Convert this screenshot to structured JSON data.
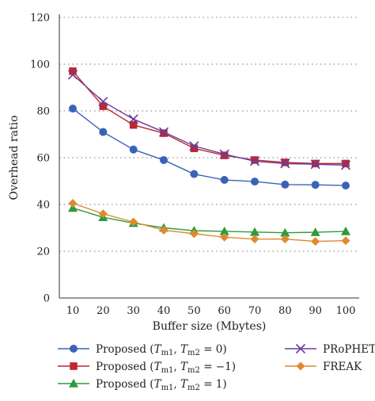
{
  "chart_data": {
    "type": "line",
    "xlabel": "Buffer size (Mbytes)",
    "ylabel": "Overhead ratio",
    "xlim": [
      10,
      100
    ],
    "ylim": [
      0,
      120
    ],
    "x": [
      10,
      20,
      30,
      40,
      50,
      60,
      70,
      80,
      90,
      100
    ],
    "xticks": [
      "10",
      "20",
      "30",
      "40",
      "50",
      "60",
      "70",
      "80",
      "90",
      "100"
    ],
    "yticks": [
      0,
      20,
      40,
      60,
      80,
      100,
      120
    ],
    "grid": "horizontal dotted",
    "legend_position": "bottom",
    "series": [
      {
        "name": "Proposed (Tm1, Tm2 = 0)",
        "label_parts": {
          "prefix": "Proposed (",
          "t1": "T",
          "t1sub": "m1",
          "sep": ", ",
          "t2": "T",
          "t2sub": "m2",
          "suffix": " = 0)"
        },
        "color": "#3a63b8",
        "marker": "circle",
        "values": [
          81,
          71,
          63.5,
          59,
          53,
          50.5,
          49.8,
          48.5,
          48.4,
          48.1
        ]
      },
      {
        "name": "Proposed (Tm1, Tm2 = −1)",
        "label_parts": {
          "prefix": "Proposed (",
          "t1": "T",
          "t1sub": "m1",
          "sep": ", ",
          "t2": "T",
          "t2sub": "m2",
          "suffix": " = −1)"
        },
        "color": "#c0262d",
        "marker": "square",
        "values": [
          97,
          82,
          74,
          70.5,
          64,
          61,
          59,
          58,
          57.5,
          57.5
        ]
      },
      {
        "name": "Proposed (Tm1, Tm2 = 1)",
        "label_parts": {
          "prefix": "Proposed (",
          "t1": "T",
          "t1sub": "m1",
          "sep": ", ",
          "t2": "T",
          "t2sub": "m2",
          "suffix": " = 1)"
        },
        "color": "#2e9a3c",
        "marker": "triangle",
        "values": [
          38.5,
          34.5,
          32,
          30,
          28.8,
          28.5,
          28.2,
          27.9,
          28.1,
          28.5
        ]
      },
      {
        "name": "PRoPHET",
        "color": "#6a3d9a",
        "marker": "x",
        "values": [
          95.5,
          84,
          76.5,
          71,
          65,
          61.5,
          58.5,
          57.5,
          57.2,
          56.8
        ]
      },
      {
        "name": "FREAK",
        "color": "#e08a2e",
        "marker": "diamond",
        "values": [
          40.5,
          36,
          32.5,
          29,
          27.5,
          26,
          25.2,
          25.2,
          24.2,
          24.5
        ]
      }
    ]
  }
}
